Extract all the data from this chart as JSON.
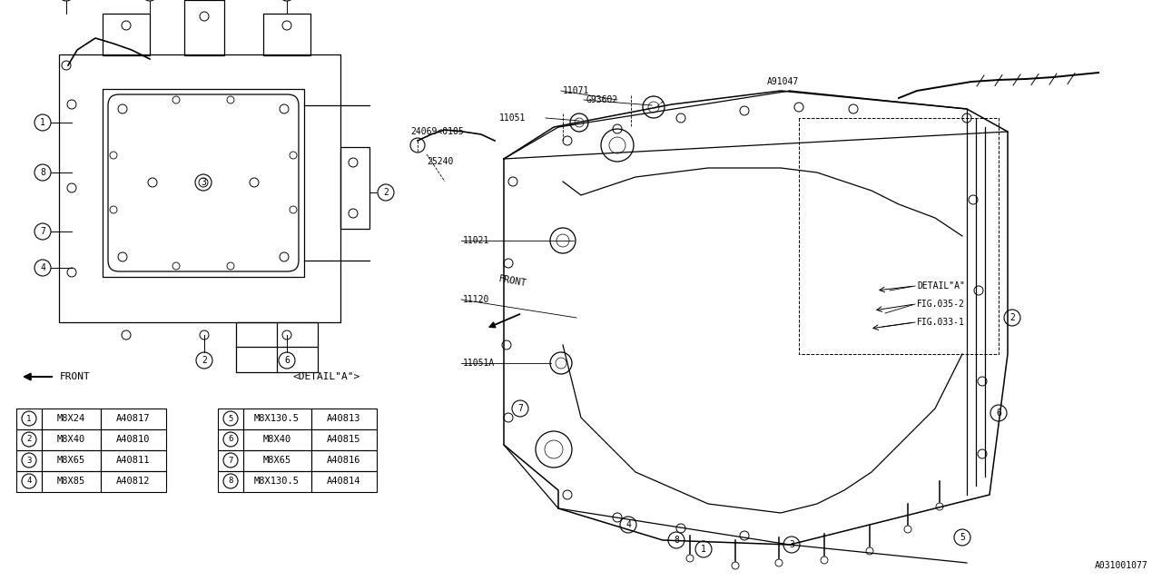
{
  "bg_color": "#ffffff",
  "line_color": "#000000",
  "diagram_id": "A031001077",
  "table_left": [
    {
      "num": "1",
      "size": "M8X24",
      "part": "A40817"
    },
    {
      "num": "2",
      "size": "M8X40",
      "part": "A40810"
    },
    {
      "num": "3",
      "size": "M8X65",
      "part": "A40811"
    },
    {
      "num": "4",
      "size": "M8X85",
      "part": "A40812"
    }
  ],
  "table_right": [
    {
      "num": "5",
      "size": "M8X130.5",
      "part": "A40813"
    },
    {
      "num": "6",
      "size": "M8X40",
      "part": "A40815"
    },
    {
      "num": "7",
      "size": "M8X65",
      "part": "A40816"
    },
    {
      "num": "8",
      "size": "M8X130.5",
      "part": "A40814"
    }
  ]
}
